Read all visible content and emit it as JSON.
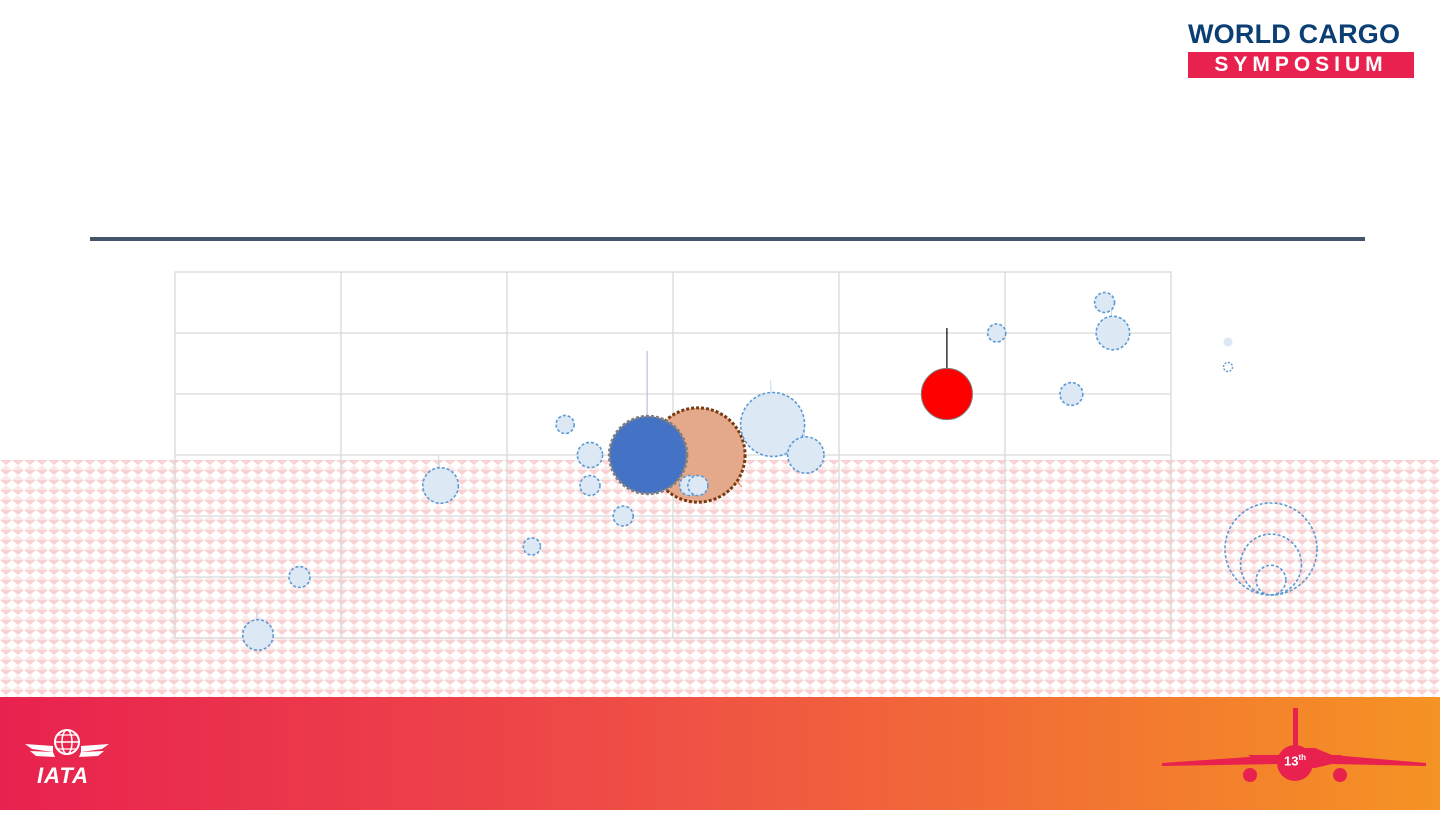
{
  "logo": {
    "line1": "WORLD CARGO",
    "line2": "SYMPOSIUM"
  },
  "footer": {
    "org": "IATA",
    "edition": "13",
    "edition_suffix": "th"
  },
  "colors": {
    "rule": "#44546a",
    "grid": "#d9d9d9",
    "bubble_light": "#dde8f5",
    "bubble_stroke": "#5b9bd5",
    "highlight_blue": "#4472c4",
    "highlight_peach": "#e4a98a",
    "highlight_red": "#ff0000",
    "footer_start": "#e8224f",
    "footer_end": "#f59324"
  },
  "chart_data": {
    "type": "scatter",
    "variant": "bubble",
    "title": "",
    "xlabel": "",
    "ylabel": "",
    "xlim": [
      0,
      6
    ],
    "ylim": [
      0,
      6
    ],
    "grid": true,
    "size_legend": [
      {
        "value": 100
      },
      {
        "value": 40
      },
      {
        "value": 7
      }
    ],
    "points": [
      {
        "x": 0.5,
        "y": 0.05,
        "size": 6
      },
      {
        "x": 0.75,
        "y": 1.0,
        "size": 2
      },
      {
        "x": 1.6,
        "y": 2.5,
        "size": 9
      },
      {
        "x": 2.15,
        "y": 1.5,
        "size": 1
      },
      {
        "x": 2.35,
        "y": 3.5,
        "size": 1.2
      },
      {
        "x": 2.5,
        "y": 3.0,
        "size": 3.5
      },
      {
        "x": 2.5,
        "y": 2.5,
        "size": 1.7
      },
      {
        "x": 2.7,
        "y": 2.0,
        "size": 1.7
      },
      {
        "x": 2.85,
        "y": 3.0,
        "size": 57,
        "highlight": "blue"
      },
      {
        "x": 3.15,
        "y": 3.0,
        "size": 88,
        "highlight": "peach"
      },
      {
        "x": 3.1,
        "y": 2.5,
        "size": 1.7
      },
      {
        "x": 3.15,
        "y": 2.5,
        "size": 1.7
      },
      {
        "x": 3.6,
        "y": 3.5,
        "size": 37
      },
      {
        "x": 3.8,
        "y": 3.0,
        "size": 9.5
      },
      {
        "x": 4.65,
        "y": 4.0,
        "size": 22,
        "highlight": "red"
      },
      {
        "x": 4.95,
        "y": 5.0,
        "size": 1.2
      },
      {
        "x": 5.4,
        "y": 4.0,
        "size": 2.6
      },
      {
        "x": 5.6,
        "y": 5.5,
        "size": 1.7
      },
      {
        "x": 5.65,
        "y": 5.0,
        "size": 7.7
      }
    ]
  }
}
